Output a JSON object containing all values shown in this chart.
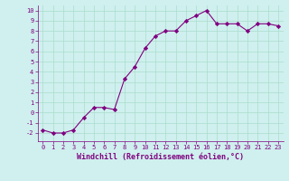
{
  "x": [
    0,
    1,
    2,
    3,
    4,
    5,
    6,
    7,
    8,
    9,
    10,
    11,
    12,
    13,
    14,
    15,
    16,
    17,
    18,
    19,
    20,
    21,
    22,
    23
  ],
  "y": [
    -1.7,
    -2.0,
    -2.0,
    -1.7,
    -0.5,
    0.5,
    0.5,
    0.3,
    3.3,
    4.5,
    6.3,
    7.5,
    8.0,
    8.0,
    9.0,
    9.5,
    10.0,
    8.7,
    8.7,
    8.7,
    8.0,
    8.7,
    8.7,
    8.5
  ],
  "line_color": "#800080",
  "marker": "D",
  "marker_color": "#800080",
  "bg_color": "#cff0ee",
  "grid_color": "#aaddcc",
  "xlabel": "Windchill (Refroidissement éolien,°C)",
  "xlabel_color": "#800080",
  "xlim": [
    -0.5,
    23.5
  ],
  "ylim": [
    -2.8,
    10.5
  ],
  "yticks": [
    -2,
    -1,
    0,
    1,
    2,
    3,
    4,
    5,
    6,
    7,
    8,
    9,
    10
  ],
  "xticks": [
    0,
    1,
    2,
    3,
    4,
    5,
    6,
    7,
    8,
    9,
    10,
    11,
    12,
    13,
    14,
    15,
    16,
    17,
    18,
    19,
    20,
    21,
    22,
    23
  ],
  "tick_color": "#800080",
  "tick_fontsize": 5.0,
  "xlabel_fontsize": 6.0,
  "linewidth": 0.8,
  "markersize": 2.2
}
